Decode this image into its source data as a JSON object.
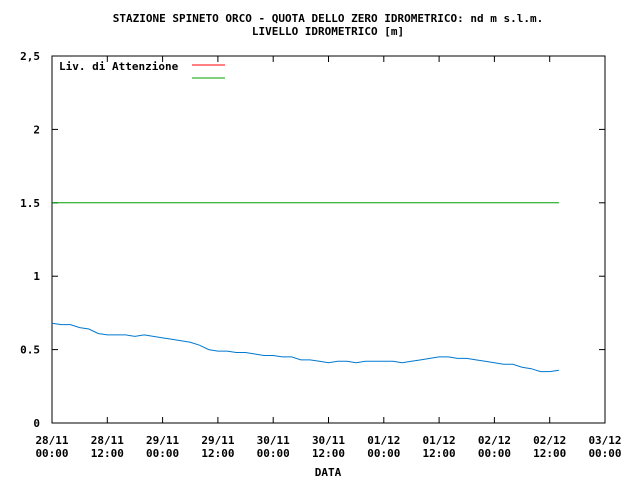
{
  "chart_data": {
    "type": "line",
    "title": "STAZIONE SPINETO ORCO - QUOTA DELLO ZERO IDROMETRICO: nd m s.l.m.",
    "subtitle": "LIVELLO IDROMETRICO [m]",
    "xlabel": "DATA",
    "ylabel": "",
    "ylim": [
      0,
      2.5
    ],
    "yticks": [
      "0",
      "0.5",
      "1",
      "1.5",
      "2",
      "2,5"
    ],
    "xticks": [
      {
        "date": "28/11",
        "time": "00:00"
      },
      {
        "date": "28/11",
        "time": "12:00"
      },
      {
        "date": "29/11",
        "time": "00:00"
      },
      {
        "date": "29/11",
        "time": "12:00"
      },
      {
        "date": "30/11",
        "time": "00:00"
      },
      {
        "date": "30/11",
        "time": "12:00"
      },
      {
        "date": "01/12",
        "time": "00:00"
      },
      {
        "date": "01/12",
        "time": "12:00"
      },
      {
        "date": "02/12",
        "time": "00:00"
      },
      {
        "date": "02/12",
        "time": "12:00"
      },
      {
        "date": "03/12",
        "time": "00:00"
      }
    ],
    "legend": {
      "placement": "top-left",
      "entries": [
        {
          "label": "Liv. di Attenzione",
          "color": "#ff0000"
        },
        {
          "label": "",
          "color": "#00a000"
        }
      ]
    },
    "threshold_lines": [
      {
        "y": 1.5,
        "x_start": "28/11 00:00",
        "x_end": "02/12 14:00",
        "color": "#00a000"
      }
    ],
    "series": [
      {
        "color": "#0078d0",
        "points": [
          [
            "28/11 00:00",
            0.68
          ],
          [
            "28/11 02:00",
            0.67
          ],
          [
            "28/11 04:00",
            0.67
          ],
          [
            "28/11 06:00",
            0.65
          ],
          [
            "28/11 08:00",
            0.64
          ],
          [
            "28/11 10:00",
            0.61
          ],
          [
            "28/11 12:00",
            0.6
          ],
          [
            "28/11 14:00",
            0.6
          ],
          [
            "28/11 16:00",
            0.6
          ],
          [
            "28/11 18:00",
            0.59
          ],
          [
            "28/11 20:00",
            0.6
          ],
          [
            "28/11 22:00",
            0.59
          ],
          [
            "29/11 00:00",
            0.58
          ],
          [
            "29/11 02:00",
            0.57
          ],
          [
            "29/11 04:00",
            0.56
          ],
          [
            "29/11 06:00",
            0.55
          ],
          [
            "29/11 08:00",
            0.53
          ],
          [
            "29/11 10:00",
            0.5
          ],
          [
            "29/11 12:00",
            0.49
          ],
          [
            "29/11 14:00",
            0.49
          ],
          [
            "29/11 16:00",
            0.48
          ],
          [
            "29/11 18:00",
            0.48
          ],
          [
            "29/11 20:00",
            0.47
          ],
          [
            "29/11 22:00",
            0.46
          ],
          [
            "30/11 00:00",
            0.46
          ],
          [
            "30/11 02:00",
            0.45
          ],
          [
            "30/11 04:00",
            0.45
          ],
          [
            "30/11 06:00",
            0.43
          ],
          [
            "30/11 08:00",
            0.43
          ],
          [
            "30/11 10:00",
            0.42
          ],
          [
            "30/11 12:00",
            0.41
          ],
          [
            "30/11 14:00",
            0.42
          ],
          [
            "30/11 16:00",
            0.42
          ],
          [
            "30/11 18:00",
            0.41
          ],
          [
            "30/11 20:00",
            0.42
          ],
          [
            "30/11 22:00",
            0.42
          ],
          [
            "01/12 00:00",
            0.42
          ],
          [
            "01/12 02:00",
            0.42
          ],
          [
            "01/12 04:00",
            0.41
          ],
          [
            "01/12 06:00",
            0.42
          ],
          [
            "01/12 08:00",
            0.43
          ],
          [
            "01/12 10:00",
            0.44
          ],
          [
            "01/12 12:00",
            0.45
          ],
          [
            "01/12 14:00",
            0.45
          ],
          [
            "01/12 16:00",
            0.44
          ],
          [
            "01/12 18:00",
            0.44
          ],
          [
            "01/12 20:00",
            0.43
          ],
          [
            "01/12 22:00",
            0.42
          ],
          [
            "02/12 00:00",
            0.41
          ],
          [
            "02/12 02:00",
            0.4
          ],
          [
            "02/12 04:00",
            0.4
          ],
          [
            "02/12 06:00",
            0.38
          ],
          [
            "02/12 08:00",
            0.37
          ],
          [
            "02/12 10:00",
            0.35
          ],
          [
            "02/12 12:00",
            0.35
          ],
          [
            "02/12 14:00",
            0.36
          ]
        ]
      }
    ]
  }
}
